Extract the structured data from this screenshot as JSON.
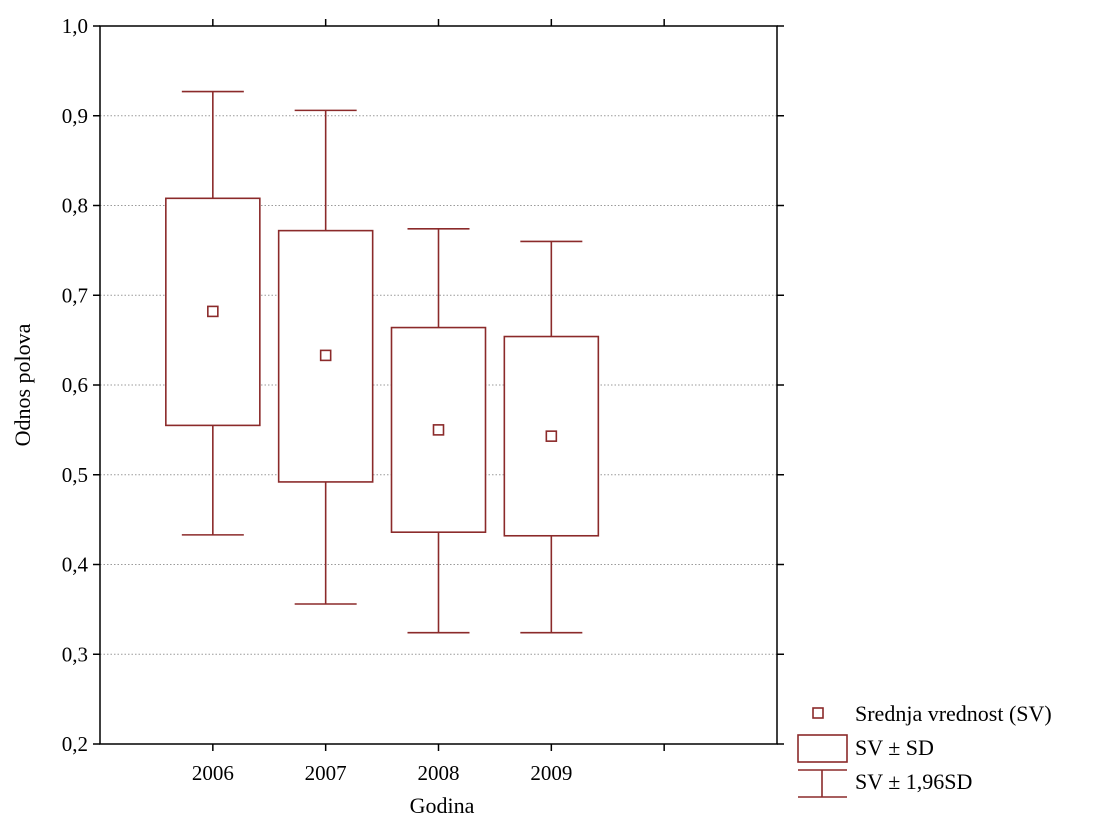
{
  "chart_data": {
    "type": "box",
    "title": "",
    "xlabel": "Godina",
    "ylabel": "Odnos polova",
    "ylim": [
      0.2,
      1.0
    ],
    "y_ticks": [
      "0,2",
      "0,3",
      "0,4",
      "0,5",
      "0,6",
      "0,7",
      "0,8",
      "0,9",
      "1,0"
    ],
    "x_ticks": [
      "2006",
      "2007",
      "2008",
      "2009"
    ],
    "grid": "horizontal-dotted",
    "legend_position": "bottom-right",
    "color": "#8b2a2a",
    "categories": [
      "2006",
      "2007",
      "2008",
      "2009"
    ],
    "series": [
      {
        "category": "2006",
        "mean": 0.682,
        "mean_minus_sd": 0.555,
        "mean_plus_sd": 0.808,
        "mean_minus_196sd": 0.433,
        "mean_plus_196sd": 0.927
      },
      {
        "category": "2007",
        "mean": 0.633,
        "mean_minus_sd": 0.492,
        "mean_plus_sd": 0.772,
        "mean_minus_196sd": 0.356,
        "mean_plus_196sd": 0.906
      },
      {
        "category": "2008",
        "mean": 0.55,
        "mean_minus_sd": 0.436,
        "mean_plus_sd": 0.664,
        "mean_minus_196sd": 0.324,
        "mean_plus_196sd": 0.774
      },
      {
        "category": "2009",
        "mean": 0.543,
        "mean_minus_sd": 0.432,
        "mean_plus_sd": 0.654,
        "mean_minus_196sd": 0.324,
        "mean_plus_196sd": 0.76
      }
    ],
    "legend": [
      {
        "icon": "mean-marker-icon",
        "label": "Srednja vrednost (SV)"
      },
      {
        "icon": "box-icon",
        "label": "SV ± SD"
      },
      {
        "icon": "whisker-icon",
        "label": "SV ± 1,96SD"
      }
    ]
  }
}
